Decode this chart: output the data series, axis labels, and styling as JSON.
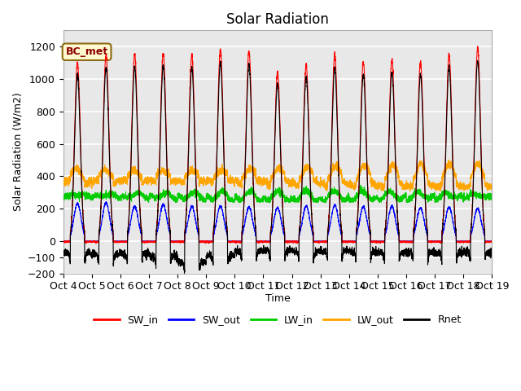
{
  "title": "Solar Radiation",
  "xlabel": "Time",
  "ylabel": "Solar Radiation (W/m2)",
  "ylim": [
    -200,
    1300
  ],
  "annotation": "BC_met",
  "line_colors": {
    "SW_in": "#FF0000",
    "SW_out": "#0000FF",
    "LW_in": "#00CC00",
    "LW_out": "#FFA500",
    "Rnet": "#000000"
  },
  "background_color": "#FFFFFF",
  "plot_bg_color": "#E8E8E8",
  "n_days": 15,
  "start_day": 4,
  "figsize": [
    6.4,
    4.8
  ],
  "dpi": 100,
  "sw_peaks": [
    1100,
    1150,
    1155,
    1160,
    1150,
    1180,
    1175,
    1040,
    1085,
    1150,
    1105,
    1120,
    1100,
    1155,
    1195
  ],
  "sw_out_peaks": [
    230,
    235,
    215,
    225,
    215,
    215,
    210,
    205,
    215,
    220,
    210,
    215,
    205,
    210,
    200
  ],
  "rnet_night_base": [
    -75,
    -80,
    -78,
    -90,
    -130,
    -88,
    -62,
    -58,
    -65,
    -62,
    -68,
    -70,
    -68,
    -72,
    -68
  ]
}
